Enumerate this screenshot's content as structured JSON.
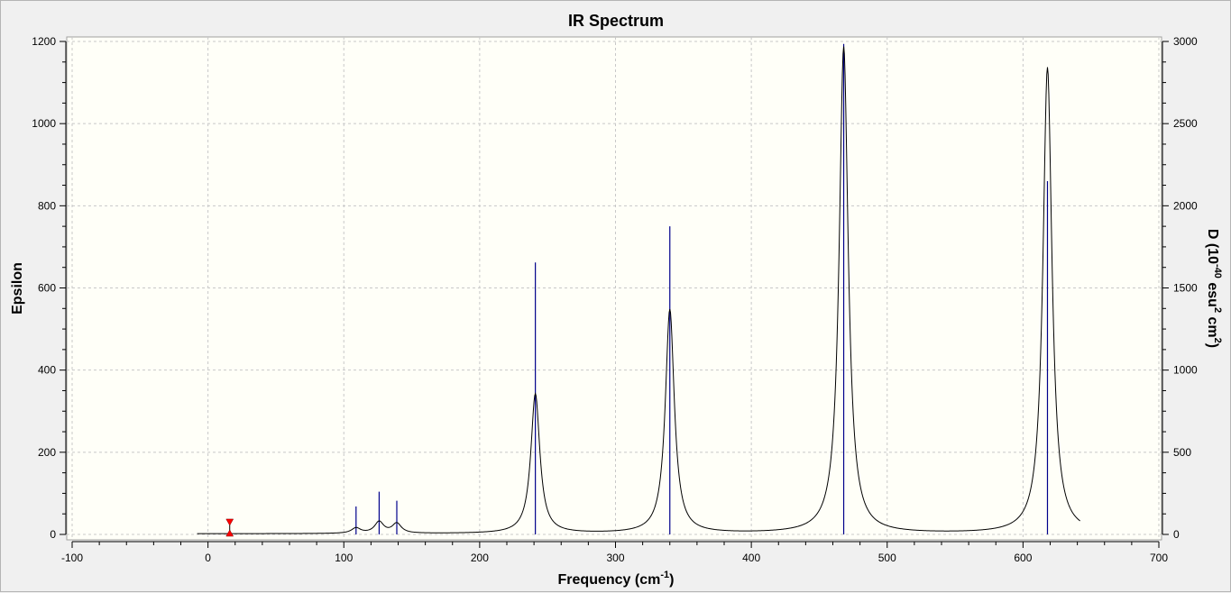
{
  "chart_data": {
    "type": "line",
    "title": "IR Spectrum",
    "xlabel": "Frequency (cm",
    "xlabel_sup": "-1",
    "xlabel_end": ")",
    "ylabel": "Epsilon",
    "y2label_parts": [
      "D (10",
      "-40",
      " esu",
      "2",
      " cm",
      "2",
      ")"
    ],
    "xlim": [
      -100,
      700
    ],
    "ylim": [
      0,
      1200
    ],
    "y2lim": [
      0,
      3000
    ],
    "xticks": [
      -100,
      0,
      100,
      200,
      300,
      400,
      500,
      600,
      700
    ],
    "yticks": [
      0,
      200,
      400,
      600,
      800,
      1000,
      1200
    ],
    "y2ticks": [
      0,
      500,
      1000,
      1500,
      2000,
      2500,
      3000
    ],
    "grid": true,
    "curve": {
      "name": "Epsilon",
      "color": "#000000",
      "range": [
        -8,
        642
      ],
      "baseline": 1.5,
      "halfwidth": 4,
      "peaks": [
        {
          "x": 109,
          "height": 13
        },
        {
          "x": 126,
          "height": 28
        },
        {
          "x": 139,
          "height": 24
        },
        {
          "x": 241,
          "height": 340
        },
        {
          "x": 340,
          "height": 545
        },
        {
          "x": 468,
          "height": 1185
        },
        {
          "x": 618,
          "height": 1135
        }
      ]
    },
    "sticks": {
      "name": "D",
      "color": "#00008b",
      "x": [
        109,
        126,
        139,
        241,
        340,
        468,
        618
      ],
      "y2": [
        170,
        260,
        205,
        1655,
        1875,
        2985,
        2150
      ]
    },
    "marker": {
      "x": 16,
      "y": 33,
      "color": "#ff0000"
    }
  }
}
